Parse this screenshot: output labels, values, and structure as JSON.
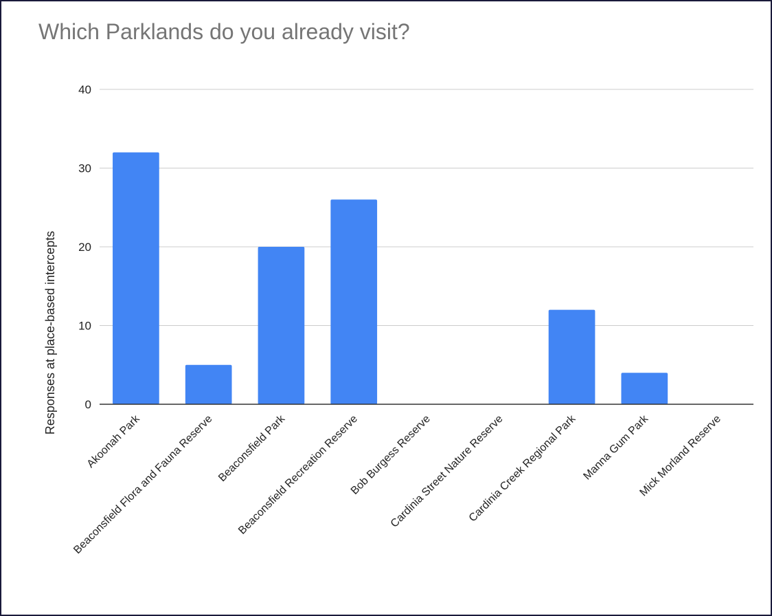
{
  "chart_data": {
    "type": "bar",
    "title": "Which Parklands do you already visit?",
    "xlabel": "",
    "ylabel": "Responses at place-based intercepts",
    "categories": [
      "Akoonah Park",
      "Beaconsfield Flora and Fauna Reserve",
      "Beaconsfield Park",
      "Beaconsfield Recreation Reserve",
      "Bob Burgess Reserve",
      "Cardinia Street Nature Reserve",
      "Cardinia Creek Regional Park",
      "Manna Gum Park",
      "Mick Morland Reserve"
    ],
    "values": [
      32,
      5,
      20,
      26,
      0,
      0,
      12,
      4,
      0
    ],
    "ylim": [
      0,
      40
    ],
    "yticks": [
      0,
      10,
      20,
      30,
      40
    ],
    "grid": true,
    "legend": "none",
    "bar_color": "#4285f4",
    "grid_color": "#cccccc",
    "axis_color": "#333333"
  }
}
